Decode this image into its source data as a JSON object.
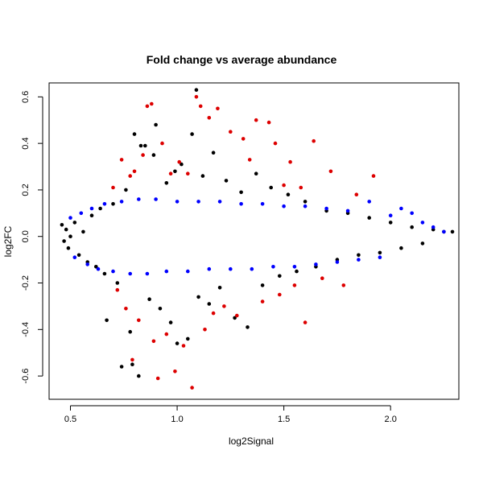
{
  "chart_data": {
    "type": "scatter",
    "title": "Fold change vs average abundance",
    "xlabel": "log2Signal",
    "ylabel": "log2FC",
    "xlim": [
      0.4,
      2.32
    ],
    "ylim": [
      -0.7,
      0.66
    ],
    "xticks": [
      0.5,
      1.0,
      1.5,
      2.0
    ],
    "xtick_labels": [
      "0.5",
      "1.0",
      "1.5",
      "2.0"
    ],
    "yticks": [
      -0.6,
      -0.4,
      -0.2,
      0.0,
      0.2,
      0.4,
      0.6
    ],
    "ytick_labels": [
      "-0.6",
      "-0.4",
      "-0.2",
      "0.0",
      "0.2",
      "0.4",
      "0.6"
    ],
    "grid": false,
    "series": [
      {
        "color": "#000000",
        "points": [
          [
            0.46,
            0.05
          ],
          [
            0.47,
            -0.02
          ],
          [
            0.48,
            0.03
          ],
          [
            0.49,
            -0.05
          ],
          [
            0.5,
            0.0
          ],
          [
            0.52,
            0.06
          ],
          [
            0.54,
            -0.08
          ],
          [
            0.56,
            0.02
          ],
          [
            0.58,
            -0.11
          ],
          [
            0.6,
            0.09
          ],
          [
            0.62,
            -0.13
          ],
          [
            0.64,
            0.12
          ],
          [
            0.66,
            -0.16
          ],
          [
            0.67,
            -0.36
          ],
          [
            0.7,
            0.14
          ],
          [
            0.72,
            -0.2
          ],
          [
            0.74,
            -0.56
          ],
          [
            0.76,
            0.2
          ],
          [
            0.78,
            -0.41
          ],
          [
            0.79,
            -0.55
          ],
          [
            0.8,
            0.44
          ],
          [
            0.82,
            -0.6
          ],
          [
            0.83,
            0.39
          ],
          [
            0.85,
            0.39
          ],
          [
            0.87,
            -0.27
          ],
          [
            0.89,
            0.35
          ],
          [
            0.9,
            0.48
          ],
          [
            0.92,
            -0.31
          ],
          [
            0.95,
            0.23
          ],
          [
            0.97,
            -0.37
          ],
          [
            0.99,
            0.28
          ],
          [
            1.0,
            -0.46
          ],
          [
            1.02,
            0.31
          ],
          [
            1.05,
            -0.44
          ],
          [
            1.07,
            0.44
          ],
          [
            1.09,
            0.63
          ],
          [
            1.1,
            -0.26
          ],
          [
            1.12,
            0.26
          ],
          [
            1.15,
            -0.29
          ],
          [
            1.17,
            0.36
          ],
          [
            1.2,
            -0.22
          ],
          [
            1.23,
            0.24
          ],
          [
            1.27,
            -0.35
          ],
          [
            1.3,
            0.19
          ],
          [
            1.33,
            -0.39
          ],
          [
            1.37,
            0.27
          ],
          [
            1.4,
            -0.21
          ],
          [
            1.44,
            0.21
          ],
          [
            1.48,
            -0.17
          ],
          [
            1.52,
            0.18
          ],
          [
            1.56,
            -0.15
          ],
          [
            1.6,
            0.15
          ],
          [
            1.65,
            -0.13
          ],
          [
            1.7,
            0.11
          ],
          [
            1.75,
            -0.1
          ],
          [
            1.8,
            0.1
          ],
          [
            1.85,
            -0.08
          ],
          [
            1.9,
            0.08
          ],
          [
            1.95,
            -0.07
          ],
          [
            2.0,
            0.06
          ],
          [
            2.05,
            -0.05
          ],
          [
            2.1,
            0.04
          ],
          [
            2.15,
            -0.03
          ],
          [
            2.2,
            0.03
          ],
          [
            2.25,
            0.02
          ],
          [
            2.29,
            0.02
          ]
        ]
      },
      {
        "color": "#0000ff",
        "points": [
          [
            0.5,
            0.08
          ],
          [
            0.52,
            -0.09
          ],
          [
            0.55,
            0.1
          ],
          [
            0.58,
            -0.12
          ],
          [
            0.6,
            0.12
          ],
          [
            0.63,
            -0.14
          ],
          [
            0.66,
            0.14
          ],
          [
            0.7,
            -0.15
          ],
          [
            0.74,
            0.15
          ],
          [
            0.78,
            -0.16
          ],
          [
            0.82,
            0.16
          ],
          [
            0.86,
            -0.16
          ],
          [
            0.9,
            0.16
          ],
          [
            0.95,
            -0.15
          ],
          [
            1.0,
            0.15
          ],
          [
            1.05,
            -0.15
          ],
          [
            1.1,
            0.15
          ],
          [
            1.15,
            -0.14
          ],
          [
            1.2,
            0.15
          ],
          [
            1.25,
            -0.14
          ],
          [
            1.3,
            0.14
          ],
          [
            1.35,
            -0.14
          ],
          [
            1.4,
            0.14
          ],
          [
            1.45,
            -0.13
          ],
          [
            1.5,
            0.13
          ],
          [
            1.55,
            -0.13
          ],
          [
            1.6,
            0.13
          ],
          [
            1.65,
            -0.12
          ],
          [
            1.7,
            0.12
          ],
          [
            1.75,
            -0.11
          ],
          [
            1.8,
            0.11
          ],
          [
            1.85,
            -0.1
          ],
          [
            1.9,
            0.15
          ],
          [
            1.95,
            -0.09
          ],
          [
            2.0,
            0.09
          ],
          [
            2.05,
            0.12
          ],
          [
            2.1,
            0.1
          ],
          [
            2.15,
            0.06
          ],
          [
            2.2,
            0.04
          ],
          [
            2.25,
            0.02
          ]
        ]
      },
      {
        "color": "#dd0000",
        "points": [
          [
            0.7,
            0.21
          ],
          [
            0.72,
            -0.23
          ],
          [
            0.74,
            0.33
          ],
          [
            0.76,
            -0.31
          ],
          [
            0.78,
            0.26
          ],
          [
            0.79,
            -0.53
          ],
          [
            0.8,
            0.28
          ],
          [
            0.82,
            -0.36
          ],
          [
            0.84,
            0.35
          ],
          [
            0.86,
            0.56
          ],
          [
            0.88,
            0.57
          ],
          [
            0.89,
            -0.45
          ],
          [
            0.91,
            -0.61
          ],
          [
            0.93,
            0.4
          ],
          [
            0.95,
            -0.42
          ],
          [
            0.97,
            0.27
          ],
          [
            0.99,
            -0.58
          ],
          [
            1.01,
            0.32
          ],
          [
            1.03,
            -0.47
          ],
          [
            1.05,
            0.27
          ],
          [
            1.07,
            -0.65
          ],
          [
            1.09,
            0.6
          ],
          [
            1.11,
            0.56
          ],
          [
            1.13,
            -0.4
          ],
          [
            1.15,
            0.51
          ],
          [
            1.17,
            -0.33
          ],
          [
            1.19,
            0.55
          ],
          [
            1.22,
            -0.3
          ],
          [
            1.25,
            0.45
          ],
          [
            1.28,
            -0.34
          ],
          [
            1.31,
            0.42
          ],
          [
            1.34,
            0.33
          ],
          [
            1.37,
            0.5
          ],
          [
            1.4,
            -0.28
          ],
          [
            1.43,
            0.49
          ],
          [
            1.46,
            0.4
          ],
          [
            1.48,
            -0.25
          ],
          [
            1.5,
            0.22
          ],
          [
            1.53,
            0.32
          ],
          [
            1.55,
            -0.21
          ],
          [
            1.58,
            0.21
          ],
          [
            1.6,
            -0.37
          ],
          [
            1.64,
            0.41
          ],
          [
            1.68,
            -0.18
          ],
          [
            1.72,
            0.28
          ],
          [
            1.78,
            -0.21
          ],
          [
            1.84,
            0.18
          ],
          [
            1.92,
            0.26
          ]
        ]
      }
    ]
  }
}
